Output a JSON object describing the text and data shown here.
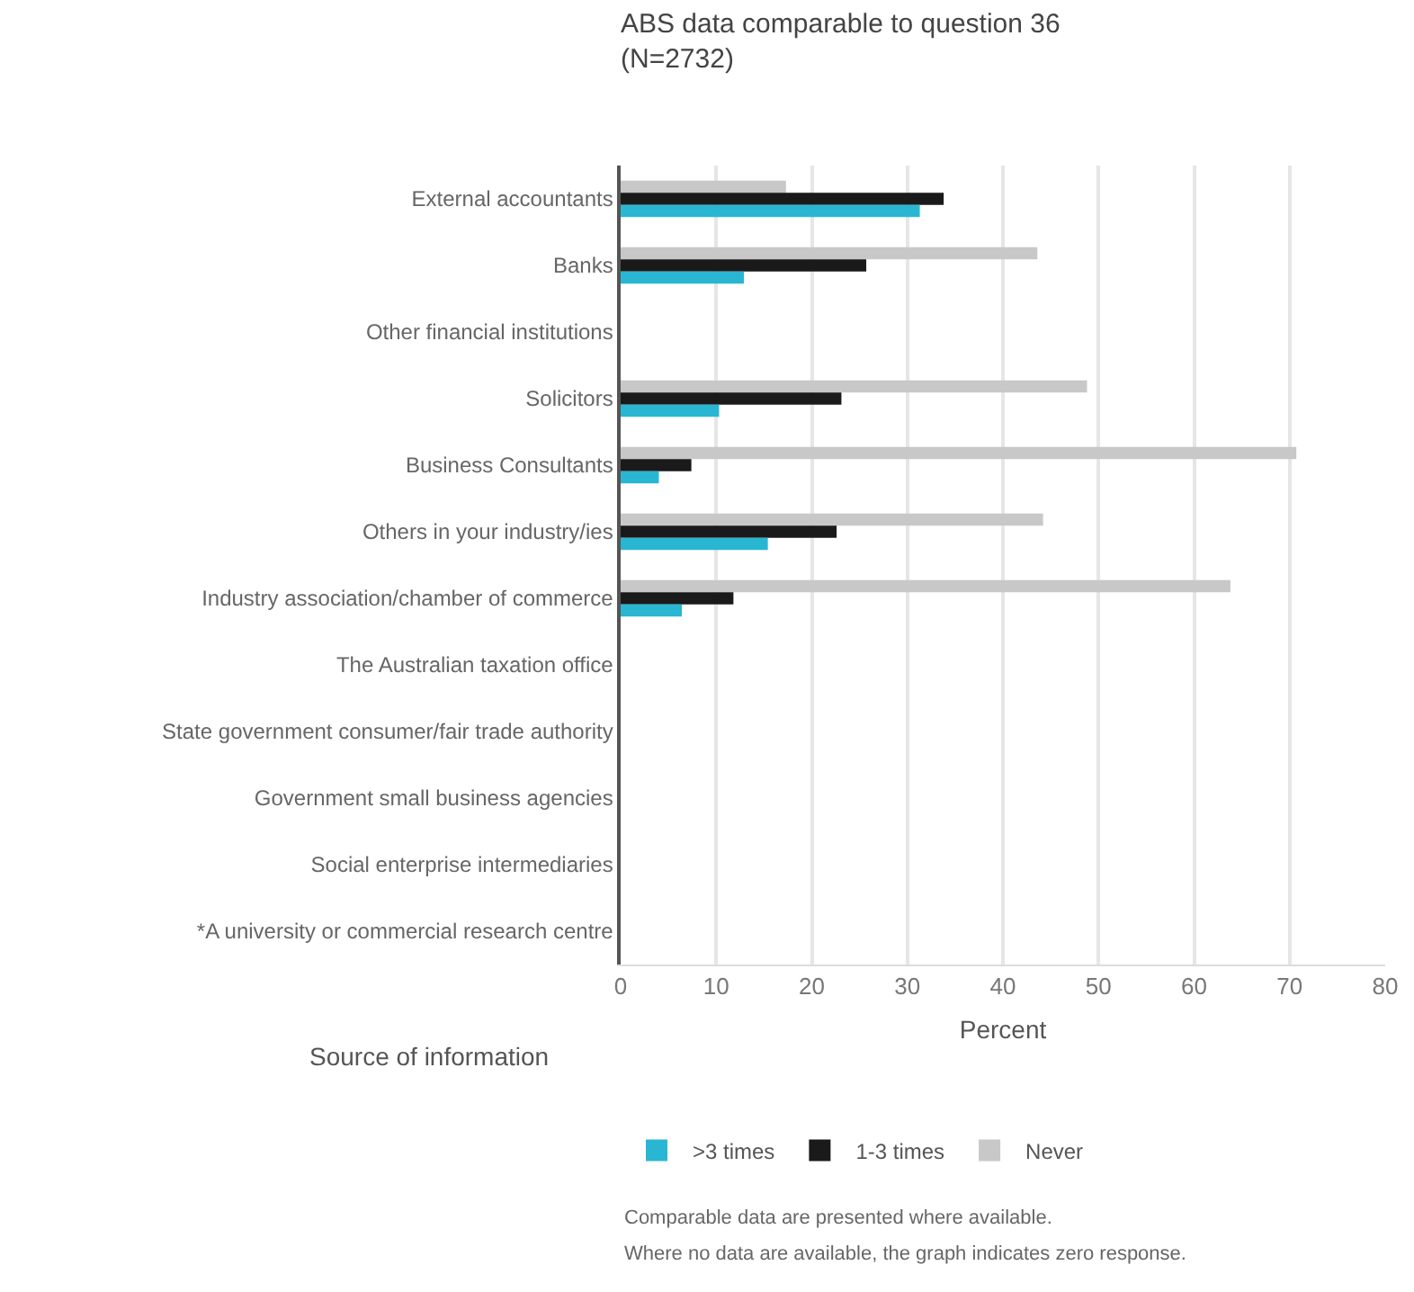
{
  "chart_data": {
    "type": "bar",
    "orientation": "horizontal",
    "title": "ABS data comparable to question 36\n(N=2732)",
    "xlabel": "Percent",
    "ylabel": "Source of information",
    "categories": [
      "External accountants",
      "Banks",
      "Other financial institutions",
      "Solicitors",
      "Business Consultants",
      "Others in your industry/ies",
      "Industry association/chamber of commerce",
      "The Australian taxation office",
      "State government consumer/fair trade authority",
      "Government small business agencies",
      "Social enterprise intermediaries",
      "*A university or commercial research centre"
    ],
    "series": [
      {
        "name": ">3 times",
        "color": "#29b6d2",
        "values": [
          31.3,
          12.9,
          0,
          10.3,
          4.0,
          15.4,
          6.4,
          0,
          0,
          0,
          0,
          0
        ]
      },
      {
        "name": "1-3 times",
        "color": "#1a1a1a",
        "values": [
          33.8,
          25.7,
          0,
          23.1,
          7.4,
          22.6,
          11.8,
          0,
          0,
          0,
          0,
          0
        ]
      },
      {
        "name": "Never",
        "color": "#c8c8c8",
        "values": [
          17.3,
          43.6,
          0,
          48.8,
          70.7,
          44.2,
          63.8,
          0,
          0,
          0,
          0,
          0
        ]
      }
    ],
    "xlim": [
      0,
      80
    ],
    "xticks": [
      0,
      10,
      20,
      30,
      40,
      50,
      60,
      70,
      80
    ],
    "grid": "x",
    "legend": "bottom",
    "annotations": [
      "Comparable data are presented where available.",
      "Where no data are available, the graph indicates zero response."
    ]
  }
}
